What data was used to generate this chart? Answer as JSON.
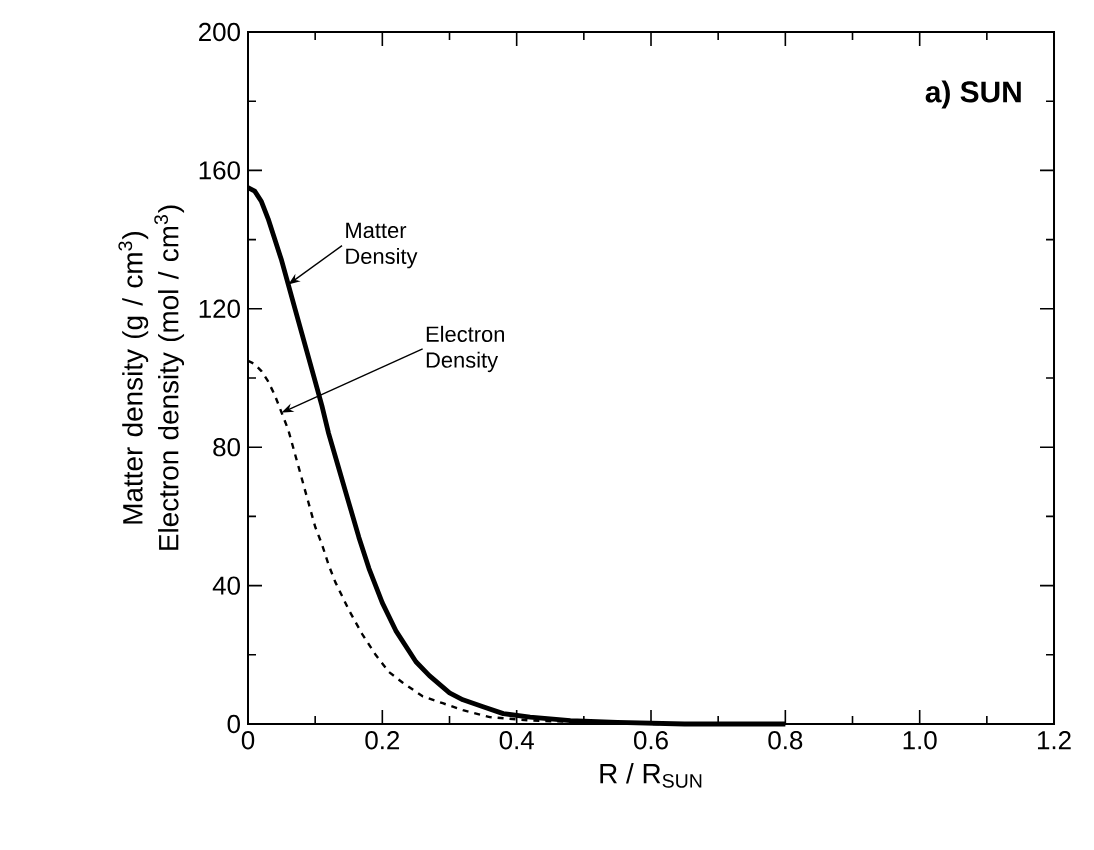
{
  "chart_data": {
    "type": "line",
    "title": "a) SUN",
    "xlabel": "R / R$_{SUN}$",
    "ylabel": "Matter density (g / cm$^{3}$) Electron density (mol / cm$^{3}$)",
    "xlim": [
      0,
      1.2
    ],
    "xticks": [
      {
        "value": 0,
        "label": "0"
      },
      0.2,
      0.4,
      0.6,
      0.8,
      {
        "value": 1.0,
        "label": "1.0"
      },
      1.2
    ],
    "ylim": [
      0,
      200
    ],
    "yticks": [
      0,
      40,
      80,
      120,
      160,
      200
    ],
    "grid": false,
    "legend": false,
    "marker": "none",
    "series": [
      {
        "name": "Matter Density",
        "color": "#000000",
        "line_style": "solid",
        "x": [
          0,
          0.01,
          0.02,
          0.03,
          0.04,
          0.05,
          0.06,
          0.07,
          0.08,
          0.09,
          0.1,
          0.11,
          0.12,
          0.135,
          0.15,
          0.165,
          0.18,
          0.2,
          0.22,
          0.25,
          0.27,
          0.3,
          0.32,
          0.35,
          0.38,
          0.42,
          0.48,
          0.55,
          0.65,
          0.8
        ],
        "values": [
          155,
          154,
          151,
          146,
          140,
          134,
          127,
          120,
          113,
          106,
          99,
          92,
          84,
          74,
          64,
          54,
          45,
          35,
          27,
          18,
          14,
          9,
          7,
          5,
          3,
          2,
          1,
          0.5,
          0,
          0
        ]
      },
      {
        "name": "Electron Density",
        "color": "#000000",
        "line_style": "dashed",
        "x": [
          0,
          0.01,
          0.02,
          0.03,
          0.04,
          0.05,
          0.06,
          0.07,
          0.08,
          0.09,
          0.1,
          0.11,
          0.12,
          0.13,
          0.15,
          0.17,
          0.19,
          0.21,
          0.23,
          0.26,
          0.29,
          0.32,
          0.36,
          0.42,
          0.5,
          0.6,
          0.8
        ],
        "values": [
          105,
          104,
          102,
          99,
          95,
          90,
          85,
          78,
          71,
          64,
          57,
          52,
          46,
          41,
          33,
          26,
          20,
          15,
          12,
          8,
          6,
          4,
          2,
          1,
          0.5,
          0,
          0
        ]
      }
    ]
  }
}
